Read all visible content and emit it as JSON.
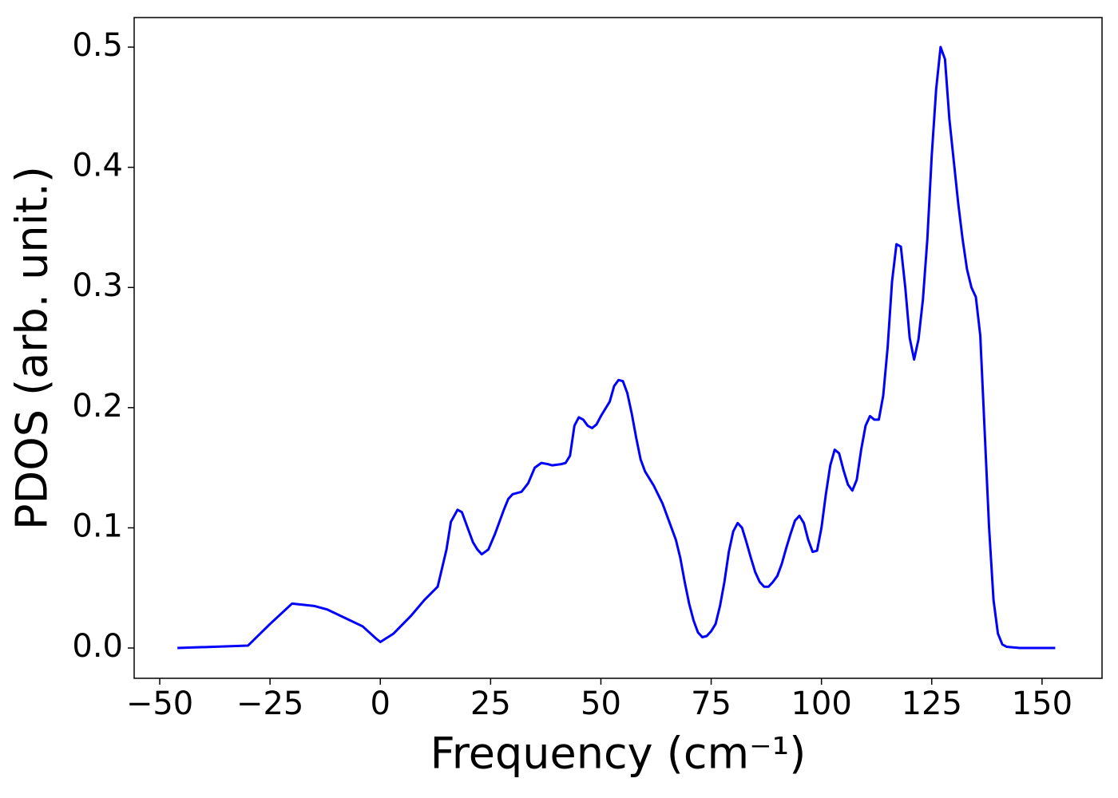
{
  "chart_data": {
    "type": "line",
    "x_label": "Frequency (cm⁻¹)",
    "y_label": "PDOS (arb. unit.)",
    "x": [
      -46,
      -30,
      -25,
      -20,
      -15,
      -12,
      -8,
      -4,
      -1,
      0,
      3,
      7,
      10,
      13,
      15,
      16,
      17.5,
      18.5,
      20,
      21,
      22,
      23,
      24.5,
      26,
      28,
      29,
      30,
      32,
      33.5,
      35,
      36.5,
      38,
      39,
      41,
      42,
      43,
      44,
      45,
      46,
      47,
      48,
      49,
      50,
      52,
      53,
      54,
      55,
      56,
      57,
      58,
      59,
      60,
      62,
      64,
      66,
      67,
      68,
      69,
      70,
      71,
      72,
      73,
      74,
      75,
      76,
      77,
      78,
      79,
      80,
      81,
      82,
      83,
      84,
      85,
      86,
      87,
      88,
      89,
      90,
      91,
      92,
      93,
      94,
      95,
      96,
      97,
      98,
      99,
      100,
      101,
      102,
      103,
      104,
      105,
      106,
      107,
      108,
      109,
      110,
      111,
      112,
      113,
      114,
      115,
      116,
      117,
      118,
      119,
      120,
      121,
      122,
      123,
      124,
      125,
      126,
      127,
      128,
      129,
      130,
      131,
      132,
      133,
      134,
      135,
      136,
      137,
      138,
      139,
      140,
      141,
      142,
      145,
      153
    ],
    "values": [
      0,
      0.002,
      0.02,
      0.037,
      0.035,
      0.032,
      0.025,
      0.018,
      0.008,
      0.005,
      0.012,
      0.027,
      0.04,
      0.051,
      0.082,
      0.105,
      0.115,
      0.113,
      0.098,
      0.088,
      0.082,
      0.078,
      0.082,
      0.095,
      0.115,
      0.124,
      0.128,
      0.13,
      0.137,
      0.15,
      0.154,
      0.153,
      0.152,
      0.153,
      0.154,
      0.16,
      0.185,
      0.192,
      0.19,
      0.185,
      0.183,
      0.186,
      0.193,
      0.205,
      0.218,
      0.223,
      0.222,
      0.212,
      0.195,
      0.175,
      0.157,
      0.147,
      0.135,
      0.12,
      0.1,
      0.09,
      0.075,
      0.055,
      0.037,
      0.023,
      0.013,
      0.009,
      0.01,
      0.014,
      0.02,
      0.035,
      0.055,
      0.08,
      0.097,
      0.104,
      0.1,
      0.088,
      0.075,
      0.063,
      0.055,
      0.051,
      0.051,
      0.055,
      0.06,
      0.07,
      0.083,
      0.095,
      0.106,
      0.11,
      0.104,
      0.09,
      0.08,
      0.081,
      0.1,
      0.128,
      0.152,
      0.165,
      0.162,
      0.148,
      0.136,
      0.131,
      0.14,
      0.165,
      0.185,
      0.193,
      0.19,
      0.19,
      0.21,
      0.25,
      0.305,
      0.336,
      0.334,
      0.3,
      0.258,
      0.24,
      0.257,
      0.29,
      0.34,
      0.41,
      0.465,
      0.5,
      0.49,
      0.44,
      0.405,
      0.37,
      0.34,
      0.315,
      0.3,
      0.292,
      0.26,
      0.18,
      0.1,
      0.04,
      0.012,
      0.003,
      0.001,
      0,
      0
    ],
    "color": "#0000ff",
    "xlim": [
      -55.8,
      163.6
    ],
    "ylim": [
      -0.0252,
      0.5246
    ],
    "xticks": [
      {
        "value": -50,
        "label": "−50"
      },
      {
        "value": -25,
        "label": "−25"
      },
      0,
      25,
      50,
      75,
      100,
      125,
      150
    ],
    "yticks": [
      {
        "value": 0,
        "label": "0.0"
      },
      0.1,
      0.2,
      0.3,
      0.4,
      0.5
    ]
  }
}
